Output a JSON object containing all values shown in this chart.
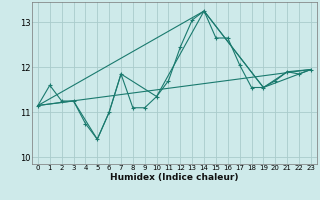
{
  "xlabel": "Humidex (Indice chaleur)",
  "bg_color": "#ceeaea",
  "grid_color": "#aacccc",
  "line_color": "#1a7a6e",
  "xlim": [
    -0.5,
    23.5
  ],
  "ylim": [
    9.85,
    13.45
  ],
  "yticks": [
    10,
    11,
    12,
    13
  ],
  "xticks": [
    0,
    1,
    2,
    3,
    4,
    5,
    6,
    7,
    8,
    9,
    10,
    11,
    12,
    13,
    14,
    15,
    16,
    17,
    18,
    19,
    20,
    21,
    22,
    23
  ],
  "series1_x": [
    0,
    1,
    2,
    3,
    4,
    5,
    6,
    7,
    8,
    9,
    10,
    11,
    12,
    13,
    14,
    15,
    16,
    17,
    18,
    19,
    20,
    21,
    22,
    23
  ],
  "series1_y": [
    11.15,
    11.6,
    11.25,
    11.25,
    10.75,
    10.4,
    11.0,
    11.85,
    11.1,
    11.1,
    11.35,
    11.7,
    12.45,
    13.05,
    13.25,
    12.65,
    12.65,
    12.05,
    11.55,
    11.55,
    11.7,
    11.9,
    11.85,
    11.95
  ],
  "series2_x": [
    0,
    23
  ],
  "series2_y": [
    11.15,
    11.95
  ],
  "series3_x": [
    0,
    3,
    5,
    6,
    7,
    10,
    14,
    19,
    21,
    23
  ],
  "series3_y": [
    11.15,
    11.25,
    10.4,
    11.0,
    11.85,
    11.35,
    13.25,
    11.55,
    11.9,
    11.95
  ],
  "series4_x": [
    0,
    14,
    19,
    23
  ],
  "series4_y": [
    11.15,
    13.25,
    11.55,
    11.95
  ]
}
